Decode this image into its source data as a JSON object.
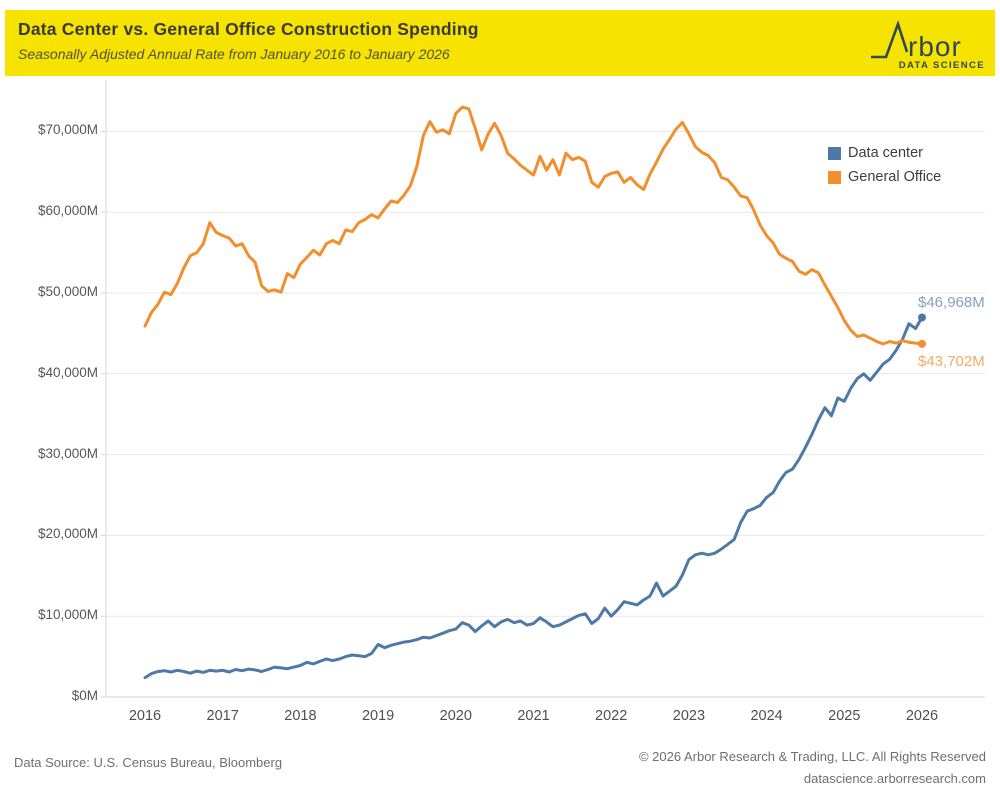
{
  "header": {
    "title": "Data Center vs. General Office Construction Spending",
    "subtitle": "Seasonally Adjusted Annual Rate from January 2016 to January 2026",
    "bar_color": "#F6E300",
    "logo": {
      "wordmark": "rbor",
      "tagline": "DATA SCIENCE",
      "color": "#2e4a56"
    }
  },
  "legend": {
    "items": [
      {
        "label": "Data center",
        "color": "#4e79a7"
      },
      {
        "label": "General Office",
        "color": "#f28e2b"
      }
    ]
  },
  "annotations": {
    "data_center_end_label": "$46,968M",
    "general_office_end_label": "$43,702M",
    "data_center_label_color": "#84a1c3",
    "general_office_label_color": "#f4aa66"
  },
  "footer": {
    "source": "Data Source: U.S. Census Bureau, Bloomberg",
    "copyright": "© 2026 Arbor Research & Trading, LLC. All Rights Reserved",
    "website": "datascience.arborresearch.com"
  },
  "chart_data": {
    "type": "line",
    "title": "Data Center vs. General Office Construction Spending",
    "subtitle": "Seasonally Adjusted Annual Rate from January 2016 to January 2026",
    "x_start": "2016-01",
    "x_end": "2026-01",
    "x_frequency": "monthly",
    "x_tick_labels": [
      "2016",
      "2017",
      "2018",
      "2019",
      "2020",
      "2021",
      "2022",
      "2023",
      "2024",
      "2025",
      "2026"
    ],
    "yticks": [
      {
        "value": 0,
        "label": "$0M"
      },
      {
        "value": 10000,
        "label": "$10,000M"
      },
      {
        "value": 20000,
        "label": "$20,000M"
      },
      {
        "value": 30000,
        "label": "$30,000M"
      },
      {
        "value": 40000,
        "label": "$40,000M"
      },
      {
        "value": 50000,
        "label": "$50,000M"
      },
      {
        "value": 60000,
        "label": "$60,000M"
      },
      {
        "value": 70000,
        "label": "$70,000M"
      }
    ],
    "ylim": [
      0,
      75000
    ],
    "grid": "horizontal",
    "legend_position": "top-right",
    "series": [
      {
        "name": "Data center",
        "color": "#4e79a7",
        "end_label": "$46,968M",
        "end_label_color": "#84a1c3",
        "values": [
          2400,
          2900,
          3150,
          3250,
          3100,
          3300,
          3150,
          2950,
          3200,
          3050,
          3300,
          3200,
          3300,
          3100,
          3400,
          3250,
          3450,
          3350,
          3150,
          3400,
          3700,
          3600,
          3500,
          3700,
          3900,
          4300,
          4100,
          4400,
          4700,
          4500,
          4700,
          5000,
          5200,
          5100,
          5000,
          5400,
          6500,
          6100,
          6400,
          6600,
          6800,
          6900,
          7100,
          7400,
          7300,
          7600,
          7900,
          8200,
          8400,
          9200,
          8900,
          8100,
          8800,
          9400,
          8700,
          9300,
          9600,
          9200,
          9400,
          8900,
          9100,
          9800,
          9300,
          8700,
          8900,
          9300,
          9700,
          10100,
          10300,
          9100,
          9700,
          11000,
          10000,
          10800,
          11800,
          11600,
          11400,
          12000,
          12500,
          14100,
          12500,
          13100,
          13700,
          15100,
          17000,
          17600,
          17800,
          17600,
          17800,
          18300,
          18900,
          19500,
          21600,
          23000,
          23300,
          23700,
          24700,
          25300,
          26700,
          27800,
          28200,
          29400,
          30900,
          32500,
          34300,
          35800,
          34800,
          37000,
          36600,
          38200,
          39400,
          40000,
          39200,
          40200,
          41200,
          41800,
          42900,
          44300,
          46200,
          45600,
          46968
        ]
      },
      {
        "name": "General Office",
        "color": "#f28e2b",
        "end_label": "$43,702M",
        "end_label_color": "#f4aa66",
        "values": [
          45900,
          47600,
          48600,
          50100,
          49800,
          51200,
          53100,
          54600,
          55000,
          56100,
          58700,
          57500,
          57100,
          56800,
          55800,
          56100,
          54600,
          53800,
          50900,
          50200,
          50400,
          50100,
          52400,
          51900,
          53600,
          54400,
          55300,
          54700,
          56100,
          56500,
          56100,
          57800,
          57600,
          58700,
          59100,
          59700,
          59300,
          60400,
          61400,
          61200,
          62100,
          63300,
          65700,
          69500,
          71200,
          69900,
          70200,
          69700,
          72200,
          73000,
          72800,
          70400,
          67700,
          69700,
          71000,
          69500,
          67300,
          66600,
          65800,
          65200,
          64600,
          66900,
          65200,
          66500,
          64600,
          67300,
          66500,
          66800,
          66300,
          63700,
          63100,
          64400,
          64800,
          65000,
          63700,
          64300,
          63400,
          62800,
          64700,
          66200,
          67800,
          69000,
          70300,
          71100,
          69700,
          68100,
          67400,
          67000,
          66100,
          64300,
          64000,
          63100,
          62000,
          61800,
          60300,
          58400,
          57100,
          56200,
          54800,
          54300,
          53900,
          52700,
          52300,
          52900,
          52500,
          51000,
          49600,
          48200,
          46600,
          45400,
          44600,
          44800,
          44400,
          44000,
          43700,
          44000,
          43800,
          44100,
          43900,
          43800,
          43702
        ]
      }
    ]
  }
}
